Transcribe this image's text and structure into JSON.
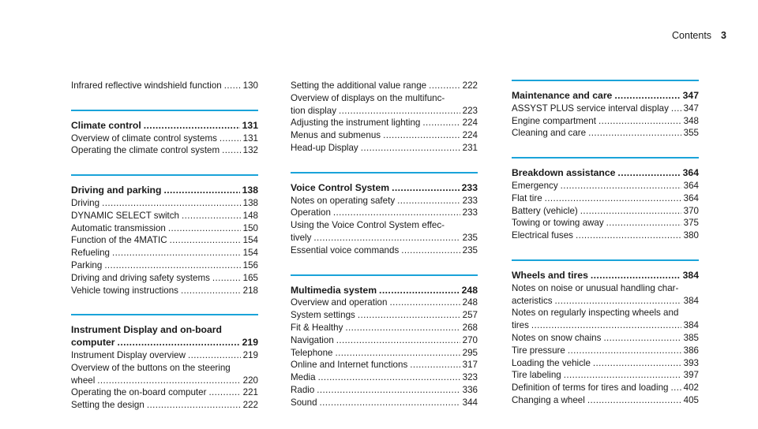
{
  "header": {
    "title": "Contents",
    "page": "3"
  },
  "columns": [
    [
      {
        "rule": false,
        "title": null,
        "entries": [
          {
            "lines": [
              "Infrared reflective windshield function"
            ],
            "page": "130"
          }
        ]
      },
      {
        "rule": true,
        "title": {
          "text": "Climate control",
          "page": "131"
        },
        "entries": [
          {
            "lines": [
              "Overview of climate control systems"
            ],
            "page": "131"
          },
          {
            "lines": [
              "Operating the climate control system"
            ],
            "page": "132"
          }
        ]
      },
      {
        "rule": true,
        "title": {
          "text": "Driving and parking",
          "page": "138"
        },
        "entries": [
          {
            "lines": [
              "Driving"
            ],
            "page": "138"
          },
          {
            "lines": [
              "DYNAMIC SELECT switch"
            ],
            "page": "148"
          },
          {
            "lines": [
              "Automatic transmission"
            ],
            "page": "150"
          },
          {
            "lines": [
              "Function of the 4MATIC"
            ],
            "page": "154"
          },
          {
            "lines": [
              "Refueling"
            ],
            "page": "154"
          },
          {
            "lines": [
              "Parking"
            ],
            "page": "156"
          },
          {
            "lines": [
              "Driving and driving safety systems"
            ],
            "page": "165"
          },
          {
            "lines": [
              "Vehicle towing instructions"
            ],
            "page": "218"
          }
        ]
      },
      {
        "rule": true,
        "title": {
          "lines": [
            "Instrument Display and on-board",
            "computer"
          ],
          "page": "219"
        },
        "entries": [
          {
            "lines": [
              "Instrument Display overview"
            ],
            "page": "219"
          },
          {
            "lines": [
              "Overview of the buttons on the steering",
              "wheel"
            ],
            "page": "220"
          },
          {
            "lines": [
              "Operating the on-board computer"
            ],
            "page": "221"
          },
          {
            "lines": [
              "Setting the design"
            ],
            "page": "222"
          }
        ]
      }
    ],
    [
      {
        "rule": false,
        "title": null,
        "entries": [
          {
            "lines": [
              "Setting the additional value range"
            ],
            "page": "222"
          },
          {
            "lines": [
              "Overview of displays on the multifunc-",
              "tion display"
            ],
            "page": "223"
          },
          {
            "lines": [
              "Adjusting the instrument lighting"
            ],
            "page": "224"
          },
          {
            "lines": [
              "Menus and submenus"
            ],
            "page": "224"
          },
          {
            "lines": [
              "Head-up Display"
            ],
            "page": "231"
          }
        ]
      },
      {
        "rule": true,
        "title": {
          "text": "Voice Control System",
          "page": "233"
        },
        "entries": [
          {
            "lines": [
              "Notes on operating safety"
            ],
            "page": "233"
          },
          {
            "lines": [
              "Operation"
            ],
            "page": "233"
          },
          {
            "lines": [
              "Using the Voice Control System effec-",
              "tively"
            ],
            "page": "235"
          },
          {
            "lines": [
              "Essential voice commands"
            ],
            "page": "235"
          }
        ]
      },
      {
        "rule": true,
        "title": {
          "text": "Multimedia system",
          "page": "248"
        },
        "entries": [
          {
            "lines": [
              "Overview and operation"
            ],
            "page": "248"
          },
          {
            "lines": [
              "System settings"
            ],
            "page": "257"
          },
          {
            "lines": [
              "Fit & Healthy"
            ],
            "page": "268"
          },
          {
            "lines": [
              "Navigation"
            ],
            "page": "270"
          },
          {
            "lines": [
              "Telephone"
            ],
            "page": "295"
          },
          {
            "lines": [
              "Online and Internet functions"
            ],
            "page": "317"
          },
          {
            "lines": [
              "Media"
            ],
            "page": "323"
          },
          {
            "lines": [
              "Radio"
            ],
            "page": "336"
          },
          {
            "lines": [
              "Sound"
            ],
            "page": "344"
          }
        ]
      }
    ],
    [
      {
        "rule": true,
        "title": {
          "text": "Maintenance and care",
          "page": "347"
        },
        "entries": [
          {
            "lines": [
              "ASSYST PLUS service interval display"
            ],
            "page": "347"
          },
          {
            "lines": [
              "Engine compartment"
            ],
            "page": "348"
          },
          {
            "lines": [
              "Cleaning and care"
            ],
            "page": "355"
          }
        ]
      },
      {
        "rule": true,
        "title": {
          "text": "Breakdown assistance",
          "page": "364"
        },
        "entries": [
          {
            "lines": [
              "Emergency"
            ],
            "page": "364"
          },
          {
            "lines": [
              "Flat tire"
            ],
            "page": "364"
          },
          {
            "lines": [
              "Battery (vehicle)"
            ],
            "page": "370"
          },
          {
            "lines": [
              "Towing or towing away"
            ],
            "page": "375"
          },
          {
            "lines": [
              "Electrical fuses"
            ],
            "page": "380"
          }
        ]
      },
      {
        "rule": true,
        "title": {
          "text": "Wheels and tires",
          "page": "384"
        },
        "entries": [
          {
            "lines": [
              "Notes on noise or unusual handling char-",
              "acteristics"
            ],
            "page": "384"
          },
          {
            "lines": [
              "Notes on regularly inspecting wheels and",
              "tires"
            ],
            "page": "384"
          },
          {
            "lines": [
              "Notes on snow chains"
            ],
            "page": "385"
          },
          {
            "lines": [
              "Tire pressure"
            ],
            "page": "386"
          },
          {
            "lines": [
              "Loading the vehicle"
            ],
            "page": "393"
          },
          {
            "lines": [
              "Tire labeling"
            ],
            "page": "397"
          },
          {
            "lines": [
              "Definition of terms for tires and loading"
            ],
            "page": "402"
          },
          {
            "lines": [
              "Changing a wheel"
            ],
            "page": "405"
          }
        ]
      }
    ]
  ]
}
